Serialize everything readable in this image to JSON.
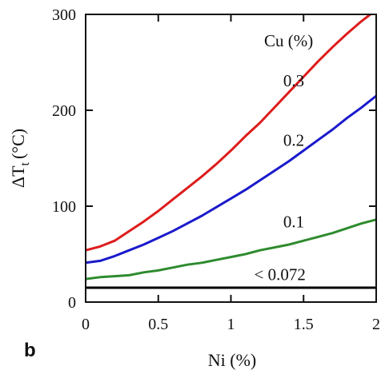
{
  "chart_data": {
    "type": "line",
    "panel_label": "b",
    "title": "",
    "xlabel": "Ni (%)",
    "ylabel_main": "ΔT",
    "ylabel_sub": "t",
    "ylabel_unit": "(°C)",
    "xlim": [
      0,
      2
    ],
    "ylim": [
      0,
      300
    ],
    "x_ticks": [
      0,
      0.5,
      1,
      1.5,
      2
    ],
    "x_tick_labels": [
      "0",
      "0.5",
      "1",
      "1.5",
      "2"
    ],
    "y_ticks": [
      0,
      100,
      200,
      300
    ],
    "y_tick_labels": [
      "0",
      "100",
      "200",
      "300"
    ],
    "grid": false,
    "legend_title": "Cu (%)",
    "series": [
      {
        "name": "0.3",
        "color": "#dd1c1c",
        "x": [
          0,
          0.1,
          0.2,
          0.3,
          0.4,
          0.5,
          0.6,
          0.7,
          0.8,
          0.9,
          1.0,
          1.1,
          1.2,
          1.3,
          1.4,
          1.5,
          1.6,
          1.7,
          1.8,
          1.9,
          1.96
        ],
        "y": [
          54,
          58,
          64,
          74,
          84,
          95,
          107,
          119,
          131,
          144,
          158,
          173,
          187,
          203,
          219,
          235,
          251,
          266,
          280,
          293,
          300
        ]
      },
      {
        "name": "0.2",
        "color": "#1a1acc",
        "x": [
          0,
          0.1,
          0.2,
          0.3,
          0.4,
          0.5,
          0.6,
          0.7,
          0.8,
          0.9,
          1.0,
          1.1,
          1.2,
          1.3,
          1.4,
          1.5,
          1.6,
          1.7,
          1.8,
          1.9,
          2.0
        ],
        "y": [
          41,
          43,
          48,
          54,
          60,
          67,
          74,
          82,
          90,
          99,
          108,
          117,
          127,
          137,
          147,
          158,
          169,
          180,
          192,
          203,
          215
        ]
      },
      {
        "name": "0.1",
        "color": "#2e8b2e",
        "x": [
          0,
          0.1,
          0.2,
          0.3,
          0.4,
          0.5,
          0.6,
          0.7,
          0.8,
          0.9,
          1.0,
          1.1,
          1.2,
          1.3,
          1.4,
          1.5,
          1.6,
          1.7,
          1.8,
          1.9,
          2.0
        ],
        "y": [
          24,
          26,
          27,
          28,
          31,
          33,
          36,
          39,
          41,
          44,
          47,
          50,
          54,
          57,
          60,
          64,
          68,
          72,
          77,
          82,
          86
        ]
      },
      {
        "name": "< 0.072",
        "color": "#000000",
        "x": [
          0,
          2.0
        ],
        "y": [
          15,
          15
        ]
      }
    ],
    "annotations": [
      {
        "text": "0.3",
        "x": 1.36,
        "y": 225
      },
      {
        "text": "0.2",
        "x": 1.36,
        "y": 163
      },
      {
        "text": "0.1",
        "x": 1.36,
        "y": 78
      },
      {
        "text": "< 0.072",
        "x": 1.16,
        "y": 23
      }
    ]
  }
}
